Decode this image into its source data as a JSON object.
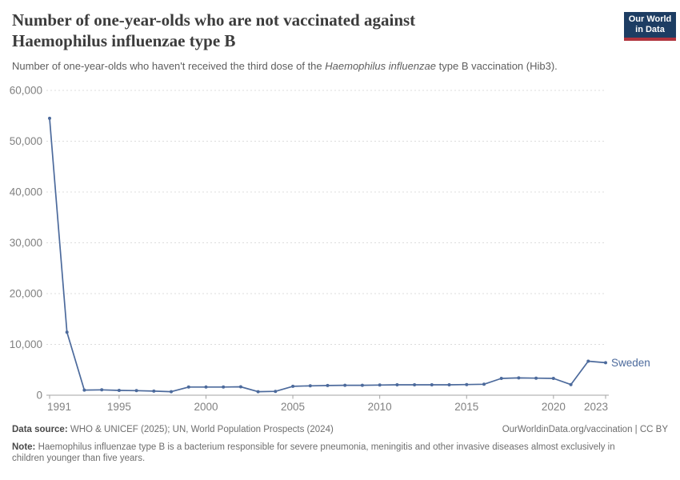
{
  "header": {
    "title_line1": "Number of one-year-olds who are not vaccinated against",
    "title_line2": "Haemophilus influenzae type B",
    "subtitle_prefix": "Number of one-year-olds who haven't received the third dose of the ",
    "subtitle_italic": "Haemophilus influenzae",
    "subtitle_suffix": " type B vaccination (Hib3).",
    "logo": {
      "line1": "Our World",
      "line2": "in Data",
      "bg_color": "#1d3d63",
      "accent_color": "#b0333d"
    }
  },
  "chart_data": {
    "type": "line",
    "title": "Number of one-year-olds who are not vaccinated against Haemophilus influenzae type B",
    "xlabel": "",
    "ylabel": "",
    "xlim": [
      1991,
      2023
    ],
    "ylim": [
      0,
      60000
    ],
    "grid": "horizontal-dashed",
    "legend_position": "end-of-line-label",
    "x_ticks": [
      1991,
      1995,
      2000,
      2005,
      2010,
      2015,
      2020,
      2023
    ],
    "y_ticks": [
      0,
      10000,
      20000,
      30000,
      40000,
      50000,
      60000
    ],
    "y_tick_labels": [
      "0",
      "10,000",
      "20,000",
      "30,000",
      "40,000",
      "50,000",
      "60,000"
    ],
    "series": [
      {
        "name": "Sweden",
        "color": "#4c6a9c",
        "x": [
          1991,
          1992,
          1993,
          1994,
          1995,
          1996,
          1997,
          1998,
          1999,
          2000,
          2001,
          2002,
          2003,
          2004,
          2005,
          2006,
          2007,
          2008,
          2009,
          2010,
          2011,
          2012,
          2013,
          2014,
          2015,
          2016,
          2017,
          2018,
          2019,
          2020,
          2021,
          2022,
          2023
        ],
        "values": [
          54500,
          12400,
          1000,
          1050,
          950,
          900,
          800,
          700,
          1600,
          1600,
          1600,
          1650,
          700,
          750,
          1750,
          1850,
          1900,
          1950,
          1950,
          2000,
          2050,
          2050,
          2050,
          2050,
          2100,
          2150,
          3300,
          3400,
          3350,
          3300,
          2100,
          6700,
          6400
        ]
      }
    ],
    "end_label": "Sweden",
    "style": {
      "grid_color": "#dcdcdc",
      "axis_color": "#a3a3a3",
      "tick_label_color": "#818181",
      "tick_font_size": 13.5
    }
  },
  "footer": {
    "datasource_label": "Data source:",
    "datasource_text": " WHO & UNICEF (2025); UN, World Population Prospects (2024)",
    "attribution": "OurWorldinData.org/vaccination | CC BY",
    "note_label": "Note:",
    "note_text": " Haemophilus influenzae type B is a bacterium responsible for severe pneumonia, meningitis and other invasive diseases almost exclusively in children younger than five years."
  }
}
